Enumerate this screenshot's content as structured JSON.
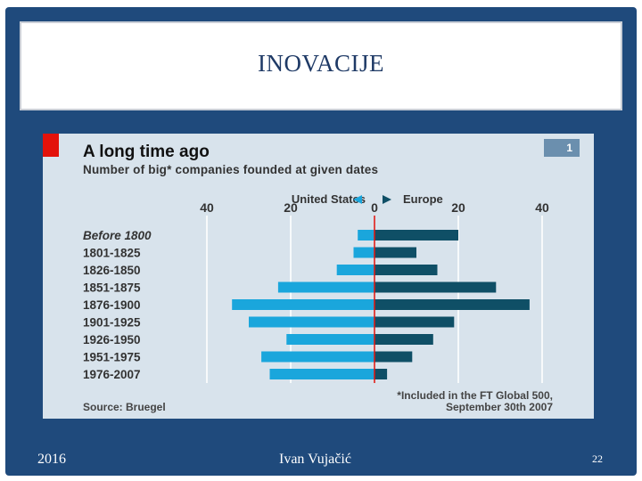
{
  "slide": {
    "title": "INOVACIJE",
    "footer_left": "2016",
    "footer_center": "Ivan Vujačić",
    "page_number": "22"
  },
  "colors": {
    "frame": "#1f4a7c",
    "panel": "#d8e3ec",
    "us": "#1aa6dc",
    "europe": "#0f4f66",
    "accent": "#e3120b"
  },
  "chart_data": {
    "type": "bar",
    "orientation": "horizontal-diverging",
    "badge": "1",
    "title": "A long time ago",
    "subtitle": "Number of big* companies founded at given dates",
    "source": "Source: Bruegel",
    "footnote_line1": "*Included in the FT Global 500,",
    "footnote_line2": "September 30th 2007",
    "legend": {
      "left": "United States",
      "right": "Europe"
    },
    "xlim": [
      -40,
      40
    ],
    "ticks": [
      -40,
      -20,
      0,
      20,
      40
    ],
    "tick_labels": [
      "40",
      "20",
      "0",
      "20",
      "40"
    ],
    "categories": [
      "Before 1800",
      "1801-1825",
      "1826-1850",
      "1851-1875",
      "1876-1900",
      "1901-1925",
      "1926-1950",
      "1951-1975",
      "1976-2007"
    ],
    "series": [
      {
        "name": "United States",
        "values": [
          4,
          5,
          9,
          23,
          34,
          30,
          21,
          27,
          25
        ]
      },
      {
        "name": "Europe",
        "values": [
          20,
          10,
          15,
          29,
          37,
          19,
          14,
          9,
          3
        ]
      }
    ]
  }
}
